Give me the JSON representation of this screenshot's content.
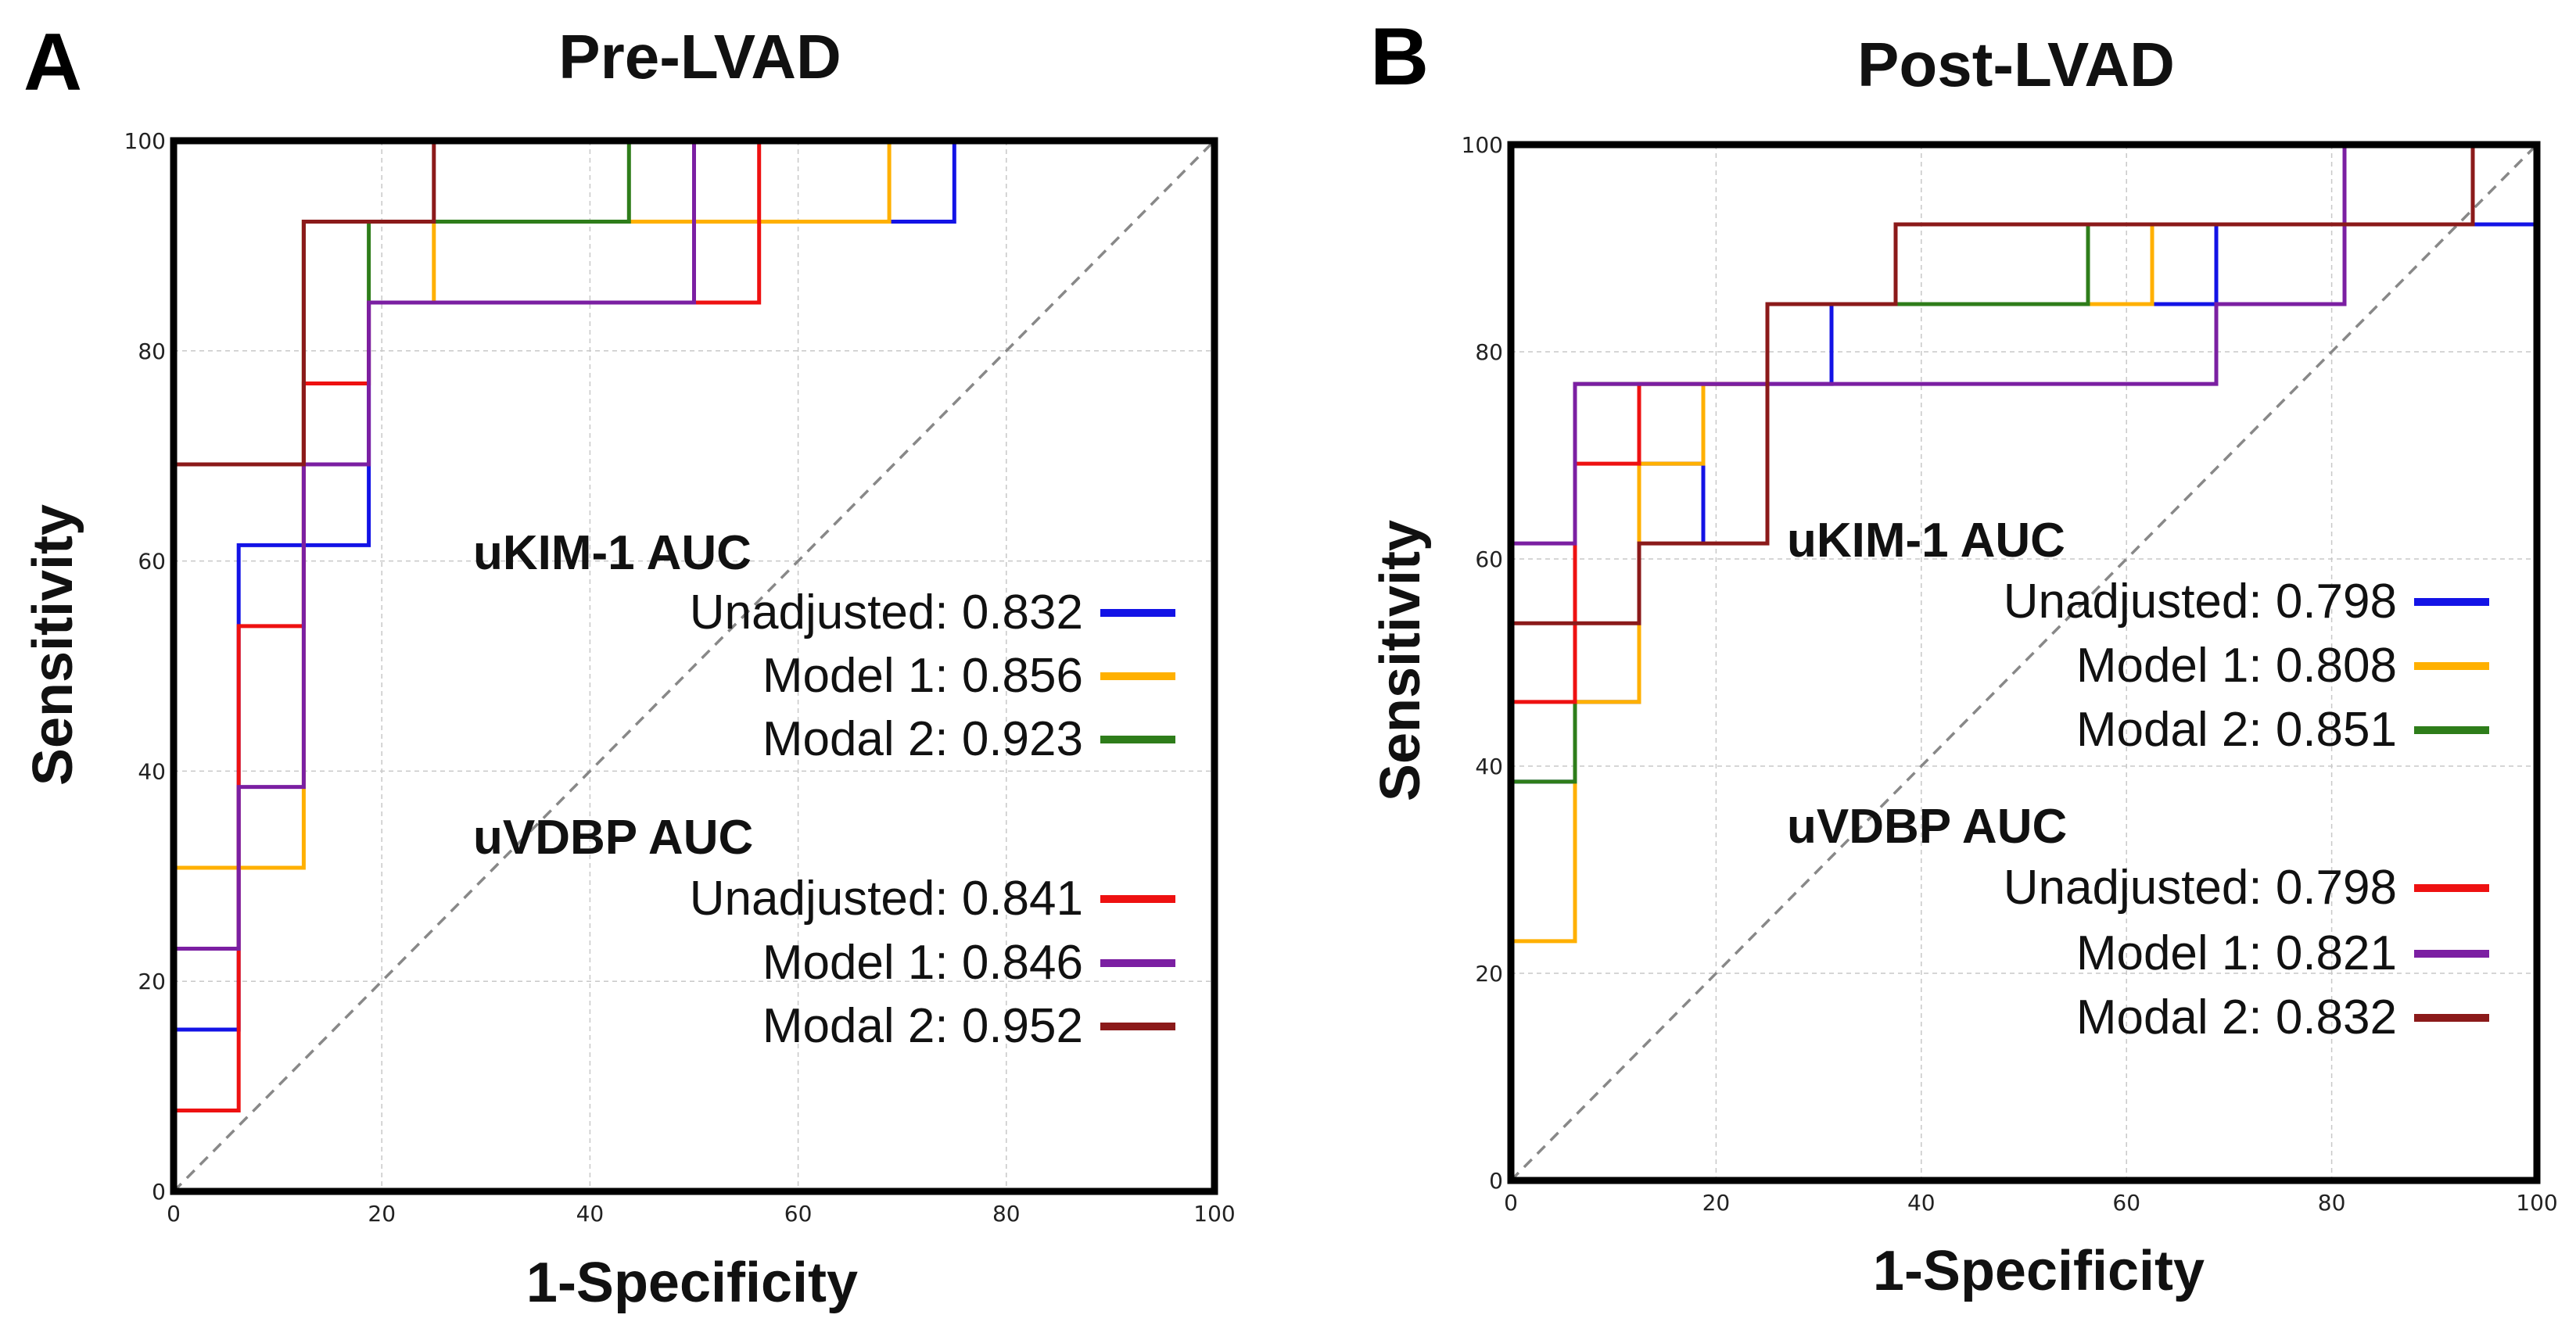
{
  "chart_data": [
    {
      "type": "line",
      "panel": "A",
      "title": "Pre-LVAD",
      "xlabel": "1-Specificity",
      "ylabel": "Sensitivity",
      "xlim": [
        0,
        100
      ],
      "ylim": [
        0,
        100
      ],
      "xticks": [
        0,
        20,
        40,
        60,
        80,
        100
      ],
      "yticks": [
        0,
        20,
        40,
        60,
        80,
        100
      ],
      "grid": true,
      "diagonal_reference": true,
      "legend": [
        {
          "heading": "uKIM-1 AUC",
          "entries": [
            {
              "label": "Unadjusted: 0.832",
              "color": "#1313e6"
            },
            {
              "label": "Model 1: 0.856",
              "color": "#ffb000"
            },
            {
              "label": "Modal 2: 0.923",
              "color": "#2e7d1a"
            }
          ]
        },
        {
          "heading": "uVDBP AUC",
          "entries": [
            {
              "label": "Unadjusted: 0.841",
              "color": "#ee1111"
            },
            {
              "label": "Model 1: 0.846",
              "color": "#7b1fa2"
            },
            {
              "label": "Modal 2: 0.952",
              "color": "#8b1a1a"
            }
          ]
        }
      ],
      "series": [
        {
          "name": "uKIM-1 Unadjusted",
          "color": "#1313e6",
          "points": [
            [
              0,
              0
            ],
            [
              0,
              15.4
            ],
            [
              6.25,
              15.4
            ],
            [
              6.25,
              61.5
            ],
            [
              18.75,
              61.5
            ],
            [
              18.75,
              84.6
            ],
            [
              50,
              84.6
            ],
            [
              50,
              92.3
            ],
            [
              68.75,
              92.3
            ],
            [
              75,
              92.3
            ],
            [
              75,
              100
            ],
            [
              100,
              100
            ]
          ]
        },
        {
          "name": "uKIM-1 Model 1",
          "color": "#ffb000",
          "points": [
            [
              0,
              0
            ],
            [
              0,
              30.8
            ],
            [
              12.5,
              30.8
            ],
            [
              12.5,
              92.3
            ],
            [
              18.75,
              92.3
            ],
            [
              25,
              92.3
            ],
            [
              25,
              84.6
            ],
            [
              25,
              92.3
            ],
            [
              68.75,
              92.3
            ],
            [
              68.75,
              100
            ],
            [
              100,
              100
            ]
          ]
        },
        {
          "name": "uKIM-1 Modal 2",
          "color": "#2e7d1a",
          "points": [
            [
              0,
              0
            ],
            [
              0,
              69.2
            ],
            [
              12.5,
              69.2
            ],
            [
              12.5,
              92.3
            ],
            [
              18.75,
              92.3
            ],
            [
              18.75,
              84.6
            ],
            [
              18.75,
              92.3
            ],
            [
              43.75,
              92.3
            ],
            [
              43.75,
              100
            ],
            [
              100,
              100
            ]
          ]
        },
        {
          "name": "uVDBP Unadjusted",
          "color": "#ee1111",
          "points": [
            [
              0,
              0
            ],
            [
              0,
              7.7
            ],
            [
              6.25,
              7.7
            ],
            [
              6.25,
              53.8
            ],
            [
              12.5,
              53.8
            ],
            [
              12.5,
              76.9
            ],
            [
              18.75,
              76.9
            ],
            [
              18.75,
              84.6
            ],
            [
              56.25,
              84.6
            ],
            [
              56.25,
              100
            ],
            [
              100,
              100
            ]
          ]
        },
        {
          "name": "uVDBP Model 1",
          "color": "#7b1fa2",
          "points": [
            [
              0,
              0
            ],
            [
              0,
              23.1
            ],
            [
              6.25,
              23.1
            ],
            [
              6.25,
              38.5
            ],
            [
              12.5,
              38.5
            ],
            [
              12.5,
              69.2
            ],
            [
              18.75,
              69.2
            ],
            [
              18.75,
              84.6
            ],
            [
              50,
              84.6
            ],
            [
              50,
              100
            ],
            [
              100,
              100
            ]
          ]
        },
        {
          "name": "uVDBP Modal 2",
          "color": "#8b1a1a",
          "points": [
            [
              0,
              0
            ],
            [
              0,
              69.2
            ],
            [
              12.5,
              69.2
            ],
            [
              12.5,
              92.3
            ],
            [
              25,
              92.3
            ],
            [
              25,
              100
            ],
            [
              100,
              100
            ]
          ]
        }
      ]
    },
    {
      "type": "line",
      "panel": "B",
      "title": "Post-LVAD",
      "xlabel": "1-Specificity",
      "ylabel": "Sensitivity",
      "xlim": [
        0,
        100
      ],
      "ylim": [
        0,
        100
      ],
      "xticks": [
        0,
        20,
        40,
        60,
        80,
        100
      ],
      "yticks": [
        0,
        20,
        40,
        60,
        80,
        100
      ],
      "grid": true,
      "diagonal_reference": true,
      "legend": [
        {
          "heading": "uKIM-1 AUC",
          "entries": [
            {
              "label": "Unadjusted: 0.798",
              "color": "#1313e6"
            },
            {
              "label": "Model 1: 0.808",
              "color": "#ffb000"
            },
            {
              "label": "Modal 2: 0.851",
              "color": "#2e7d1a"
            }
          ]
        },
        {
          "heading": "uVDBP AUC",
          "entries": [
            {
              "label": "Unadjusted: 0.798",
              "color": "#ee1111"
            },
            {
              "label": "Model 1: 0.821",
              "color": "#7b1fa2"
            },
            {
              "label": "Modal 2: 0.832",
              "color": "#8b1a1a"
            }
          ]
        }
      ],
      "series": [
        {
          "name": "uKIM-1 Unadjusted",
          "color": "#1313e6",
          "points": [
            [
              0,
              0
            ],
            [
              0,
              38.5
            ],
            [
              6.25,
              38.5
            ],
            [
              6.25,
              46.2
            ],
            [
              12.5,
              46.2
            ],
            [
              12.5,
              69.2
            ],
            [
              18.75,
              69.2
            ],
            [
              18.75,
              61.5
            ],
            [
              18.75,
              76.9
            ],
            [
              31.25,
              76.9
            ],
            [
              31.25,
              84.6
            ],
            [
              62.5,
              84.6
            ],
            [
              68.75,
              84.6
            ],
            [
              68.75,
              92.3
            ],
            [
              93.75,
              92.3
            ],
            [
              100,
              92.3
            ],
            [
              100,
              100
            ]
          ]
        },
        {
          "name": "uKIM-1 Model 1",
          "color": "#ffb000",
          "points": [
            [
              0,
              0
            ],
            [
              0,
              23.1
            ],
            [
              6.25,
              23.1
            ],
            [
              6.25,
              46.2
            ],
            [
              12.5,
              46.2
            ],
            [
              12.5,
              69.2
            ],
            [
              18.75,
              69.2
            ],
            [
              18.75,
              76.9
            ],
            [
              25,
              76.9
            ],
            [
              25,
              84.6
            ],
            [
              56.25,
              84.6
            ],
            [
              62.5,
              84.6
            ],
            [
              62.5,
              92.3
            ],
            [
              93.75,
              92.3
            ],
            [
              93.75,
              100
            ],
            [
              100,
              100
            ]
          ]
        },
        {
          "name": "uKIM-1 Modal 2",
          "color": "#2e7d1a",
          "points": [
            [
              0,
              0
            ],
            [
              0,
              38.5
            ],
            [
              6.25,
              38.5
            ],
            [
              6.25,
              53.8
            ],
            [
              6.25,
              76.9
            ],
            [
              18.75,
              76.9
            ],
            [
              25,
              76.9
            ],
            [
              25,
              84.6
            ],
            [
              56.25,
              84.6
            ],
            [
              56.25,
              92.3
            ],
            [
              93.75,
              92.3
            ],
            [
              93.75,
              100
            ],
            [
              100,
              100
            ]
          ]
        },
        {
          "name": "uVDBP Unadjusted",
          "color": "#ee1111",
          "points": [
            [
              0,
              0
            ],
            [
              0,
              46.2
            ],
            [
              6.25,
              46.2
            ],
            [
              6.25,
              69.2
            ],
            [
              12.5,
              69.2
            ],
            [
              12.5,
              76.9
            ],
            [
              25,
              76.9
            ],
            [
              25,
              84.6
            ],
            [
              37.5,
              84.6
            ],
            [
              37.5,
              92.3
            ],
            [
              93.75,
              92.3
            ],
            [
              93.75,
              100
            ],
            [
              100,
              100
            ]
          ]
        },
        {
          "name": "uVDBP Model 1",
          "color": "#7b1fa2",
          "points": [
            [
              0,
              0
            ],
            [
              0,
              61.5
            ],
            [
              6.25,
              61.5
            ],
            [
              6.25,
              76.9
            ],
            [
              68.75,
              76.9
            ],
            [
              68.75,
              84.6
            ],
            [
              81.25,
              84.6
            ],
            [
              81.25,
              100
            ],
            [
              100,
              100
            ]
          ]
        },
        {
          "name": "uVDBP Modal 2",
          "color": "#8b1a1a",
          "points": [
            [
              0,
              0
            ],
            [
              0,
              53.8
            ],
            [
              12.5,
              53.8
            ],
            [
              12.5,
              61.5
            ],
            [
              25,
              61.5
            ],
            [
              25,
              84.6
            ],
            [
              37.5,
              84.6
            ],
            [
              37.5,
              92.3
            ],
            [
              93.75,
              92.3
            ],
            [
              93.75,
              100
            ],
            [
              100,
              100
            ]
          ]
        }
      ]
    }
  ]
}
